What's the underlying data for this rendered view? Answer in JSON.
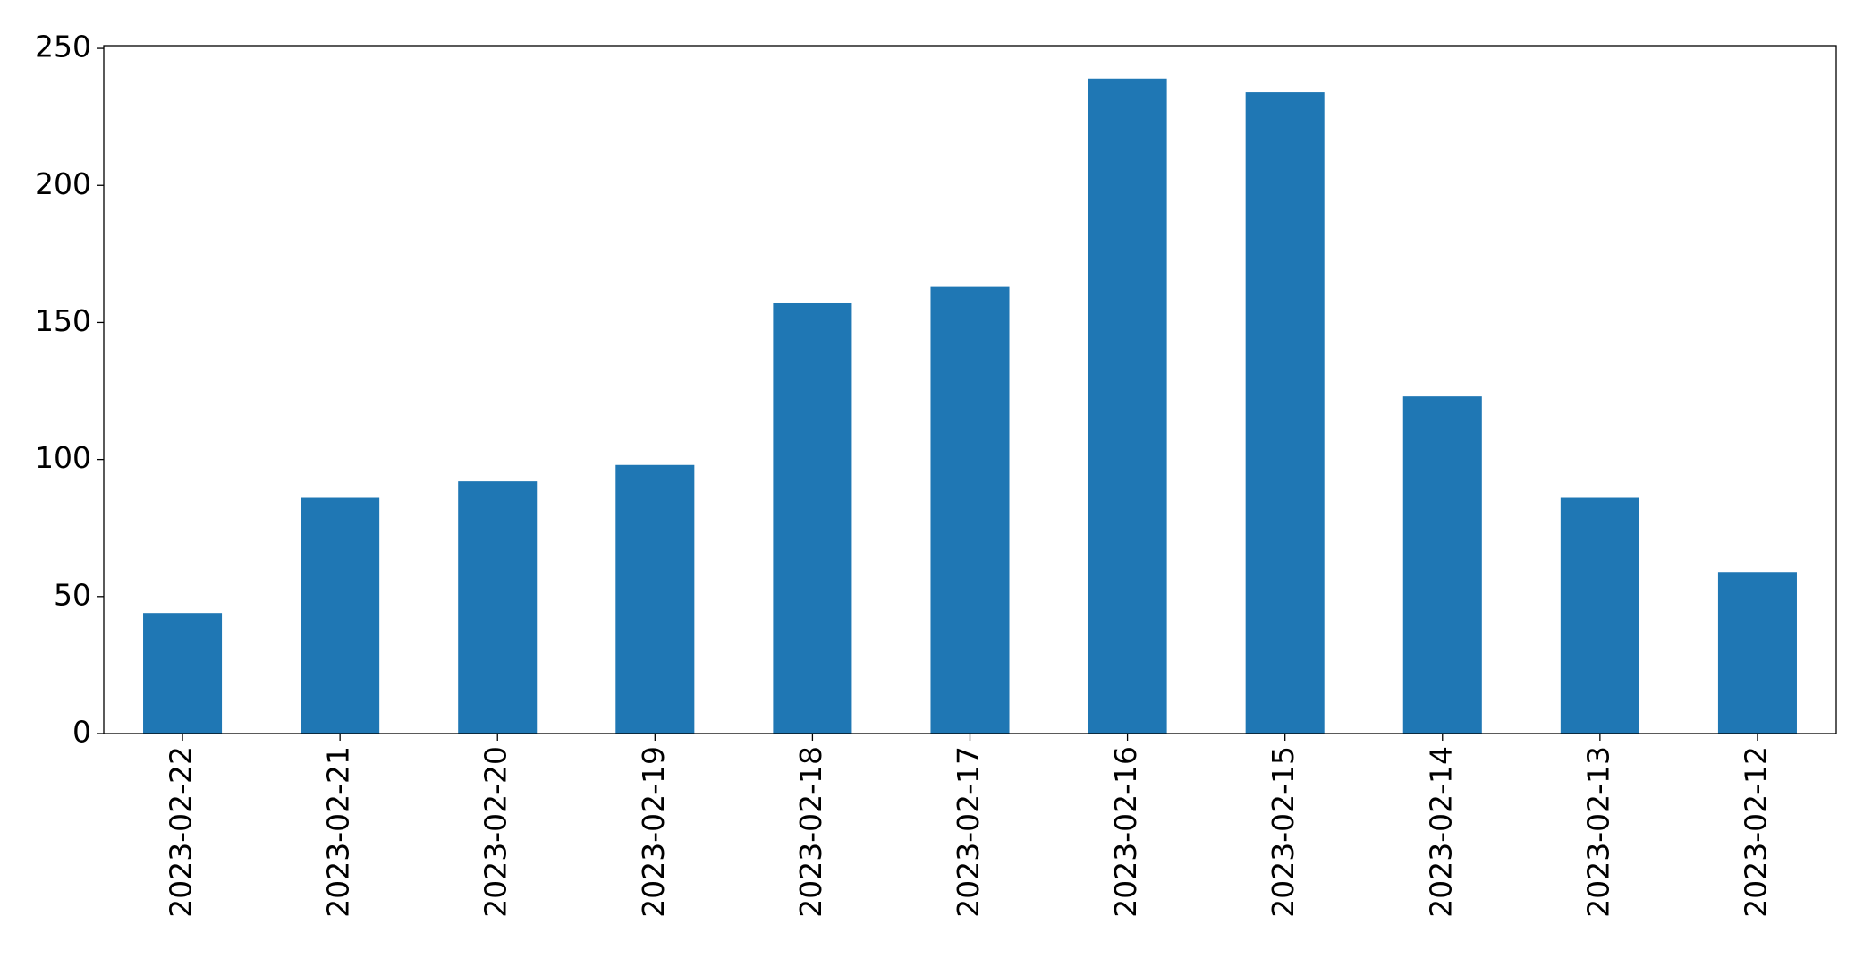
{
  "chart_data": {
    "type": "bar",
    "categories": [
      "2023-02-22",
      "2023-02-21",
      "2023-02-20",
      "2023-02-19",
      "2023-02-18",
      "2023-02-17",
      "2023-02-16",
      "2023-02-15",
      "2023-02-14",
      "2023-02-13",
      "2023-02-12"
    ],
    "values": [
      44,
      86,
      92,
      98,
      157,
      163,
      239,
      234,
      123,
      86,
      59
    ],
    "color": "#1f77b4",
    "ylim": [
      0,
      251
    ],
    "yticks": [
      0,
      50,
      100,
      150,
      200,
      250
    ],
    "grid": false
  }
}
